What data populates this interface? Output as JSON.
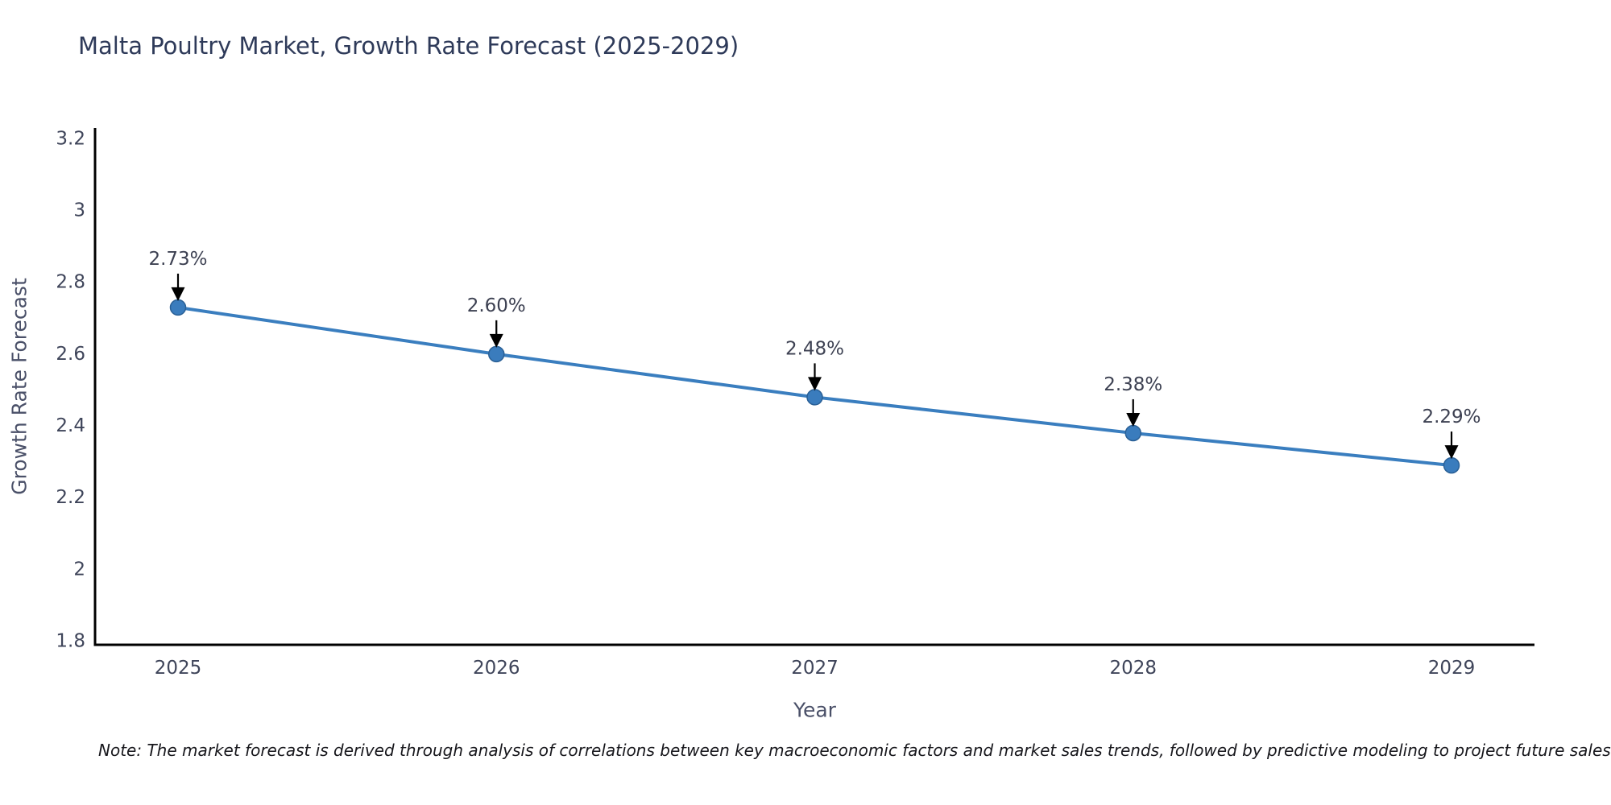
{
  "chart_data": {
    "type": "line",
    "title": "Malta Poultry Market, Growth Rate Forecast (2025-2029)",
    "note": "Note: The market forecast is derived through analysis of correlations between key macroeconomic factors and market sales trends, followed by predictive modeling to project future sales",
    "xlabel": "Year",
    "ylabel": "Growth Rate Forecast",
    "categories": [
      "2025",
      "2026",
      "2027",
      "2028",
      "2029"
    ],
    "series": [
      {
        "name": "Growth Rate Forecast",
        "values": [
          2.73,
          2.6,
          2.48,
          2.38,
          2.29
        ],
        "point_labels": [
          "2.73%",
          "2.60%",
          "2.48%",
          "2.38%",
          "2.29%"
        ]
      }
    ],
    "ylim": [
      1.79,
      3.23
    ],
    "yticks": [
      {
        "value": 3.2,
        "label": "3.2"
      },
      {
        "value": 3.0,
        "label": "3"
      },
      {
        "value": 2.8,
        "label": "2.8"
      },
      {
        "value": 2.6,
        "label": "2.6"
      },
      {
        "value": 2.4,
        "label": "2.4"
      },
      {
        "value": 2.2,
        "label": "2.2"
      },
      {
        "value": 2.0,
        "label": "2"
      },
      {
        "value": 1.8,
        "label": "1.8"
      }
    ],
    "grid": false,
    "legend": "none",
    "annotation_arrows": true,
    "colors": {
      "line": "#3a7ebf",
      "marker_fill": "#3a7cbd",
      "marker_edge": "#2a6096",
      "arrow": "#000000",
      "axis": "#000000",
      "tick_text": "#3f455a",
      "label_text": "#4a5068",
      "title_text": "#2e3a59",
      "annotation_text": "#3d4152",
      "note_text": "#17171c",
      "background": "#ffffff"
    }
  }
}
